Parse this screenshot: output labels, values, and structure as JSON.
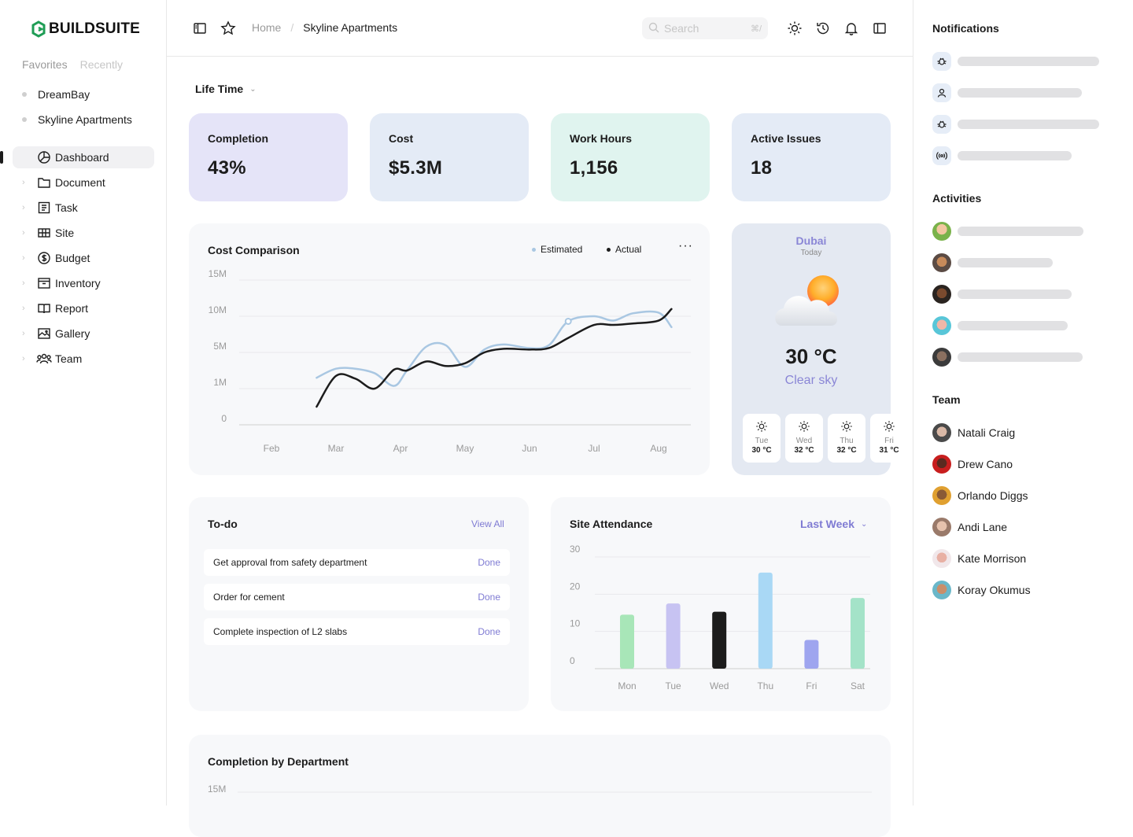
{
  "brand": {
    "name": "BUILDSUITE",
    "accent": "#1f9d55"
  },
  "sidebar": {
    "tabs": [
      "Favorites",
      "Recently"
    ],
    "favorites": [
      "DreamBay",
      "Skyline Apartments"
    ],
    "nav": [
      {
        "label": "Dashboard",
        "icon": "pie-chart-icon",
        "active": true
      },
      {
        "label": "Document",
        "icon": "folder-icon"
      },
      {
        "label": "Task",
        "icon": "task-list-icon"
      },
      {
        "label": "Site",
        "icon": "site-grid-icon"
      },
      {
        "label": "Budget",
        "icon": "dollar-icon"
      },
      {
        "label": "Inventory",
        "icon": "inventory-icon"
      },
      {
        "label": "Report",
        "icon": "book-icon"
      },
      {
        "label": "Gallery",
        "icon": "image-icon"
      },
      {
        "label": "Team",
        "icon": "team-icon"
      }
    ]
  },
  "topbar": {
    "breadcrumb": [
      "Home",
      "Skyline Apartments"
    ],
    "search_placeholder": "Search",
    "search_shortcut": "⌘/"
  },
  "main": {
    "period": "Life Time",
    "stats": [
      {
        "label": "Completion",
        "value": "43%"
      },
      {
        "label": "Cost",
        "value": "$5.3M"
      },
      {
        "label": "Work Hours",
        "value": "1,156"
      },
      {
        "label": "Active Issues",
        "value": "18"
      }
    ],
    "cost_card": {
      "title": "Cost Comparison",
      "legend": [
        "Estimated",
        "Actual"
      ],
      "more": "···"
    },
    "weather": {
      "city": "Dubai",
      "day": "Today",
      "temp": "30 °C",
      "condition": "Clear sky",
      "forecast": [
        {
          "day": "Tue",
          "temp": "30 °C"
        },
        {
          "day": "Wed",
          "temp": "32 °C"
        },
        {
          "day": "Thu",
          "temp": "32 °C"
        },
        {
          "day": "Fri",
          "temp": "31 °C"
        }
      ]
    },
    "todo": {
      "title": "To-do",
      "view_all": "View All",
      "items": [
        {
          "text": "Get approval from safety department",
          "status": "Done"
        },
        {
          "text": "Order for cement",
          "status": "Done"
        },
        {
          "text": "Complete inspection of L2 slabs",
          "status": "Done"
        }
      ]
    },
    "attendance_card": {
      "title": "Site Attendance",
      "filter": "Last Week"
    },
    "dept_card": {
      "title": "Completion by Department"
    }
  },
  "right": {
    "notifications_title": "Notifications",
    "activities_title": "Activities",
    "team_title": "Team",
    "team": [
      "Natali Craig",
      "Drew Cano",
      "Orlando Diggs",
      "Andi Lane",
      "Kate Morrison",
      "Koray Okumus"
    ]
  },
  "chart_data": [
    {
      "type": "line",
      "title": "Cost Comparison",
      "categories": [
        "Feb",
        "Mar",
        "Apr",
        "May",
        "Jun",
        "Jul",
        "Aug"
      ],
      "y_ticks": [
        "15M",
        "10M",
        "5M",
        "1M",
        "0"
      ],
      "x": [
        1.7,
        2.0,
        2.3,
        2.6,
        2.9,
        3.1,
        3.4,
        3.7,
        4.0,
        4.3,
        4.6,
        5.0,
        5.3,
        5.6,
        6.0,
        6.3,
        6.6,
        7.0,
        7.2
      ],
      "series": [
        {
          "name": "Estimated",
          "color": "#a9c7e2",
          "values": [
            2.2,
            3.2,
            3.2,
            2.7,
            1.3,
            3.0,
            5.8,
            6.0,
            3.4,
            5.4,
            6.1,
            5.6,
            6.0,
            9.3,
            10.0,
            9.4,
            10.4,
            10.5,
            8.5
          ]
        },
        {
          "name": "Actual",
          "color": "#1c1c1c",
          "values": [
            0.5,
            2.4,
            2.1,
            1.0,
            3.1,
            3.0,
            4.0,
            3.5,
            3.8,
            5.0,
            5.5,
            5.4,
            5.6,
            7.0,
            8.8,
            8.8,
            9.0,
            9.4,
            11.0
          ]
        }
      ]
    },
    {
      "type": "bar",
      "title": "Site Attendance",
      "categories": [
        "Mon",
        "Tue",
        "Wed",
        "Thu",
        "Fri",
        "Sat"
      ],
      "values": [
        14.5,
        17.5,
        15.3,
        25.8,
        7.7,
        19.0
      ],
      "colors": [
        "#a8e6b8",
        "#c7c3f2",
        "#1c1c1c",
        "#a9d8f5",
        "#9ea5ef",
        "#a4e3c8"
      ],
      "y_ticks": [
        30,
        20,
        10,
        0
      ],
      "ylim": [
        0,
        30
      ]
    },
    {
      "type": "bar",
      "title": "Completion by Department",
      "y_ticks": [
        "15M"
      ]
    }
  ]
}
